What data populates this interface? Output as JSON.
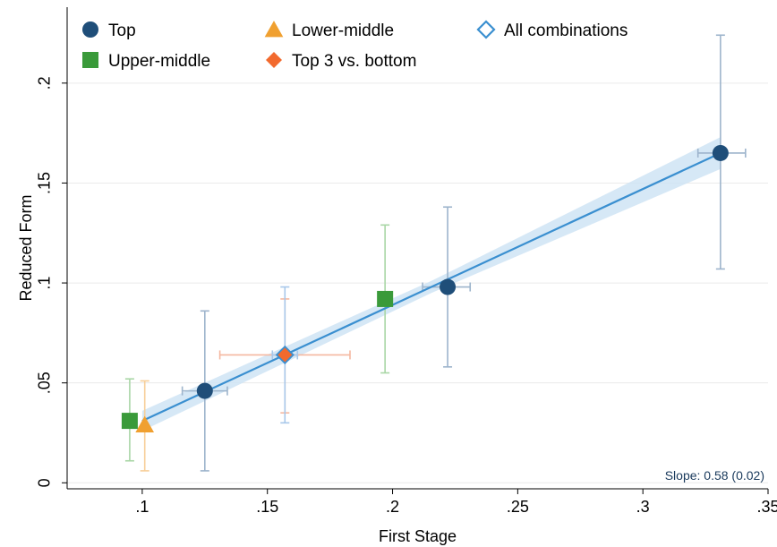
{
  "chart_data": {
    "type": "scatter",
    "xlabel": "First Stage",
    "ylabel": "Reduced Form",
    "xlim": [
      0.07,
      0.35
    ],
    "ylim": [
      -0.003,
      0.238
    ],
    "x_ticks": [
      {
        "value": 0.1,
        "label": ".1"
      },
      {
        "value": 0.15,
        "label": ".15"
      },
      {
        "value": 0.2,
        "label": ".2"
      },
      {
        "value": 0.25,
        "label": ".25"
      },
      {
        "value": 0.3,
        "label": ".3"
      },
      {
        "value": 0.35,
        "label": ".35"
      }
    ],
    "y_ticks": [
      {
        "value": 0,
        "label": "0"
      },
      {
        "value": 0.05,
        "label": ".05"
      },
      {
        "value": 0.1,
        "label": ".1"
      },
      {
        "value": 0.15,
        "label": ".15"
      },
      {
        "value": 0.2,
        "label": ".2"
      }
    ],
    "grid": true,
    "legend_position": "top",
    "series": [
      {
        "name": "Top",
        "marker": "circle",
        "color": "#1f4e79",
        "bar_color": "#9db4cc",
        "points": [
          {
            "x": 0.125,
            "y": 0.046,
            "ylo": 0.006,
            "yhi": 0.086,
            "xlo": 0.116,
            "xhi": 0.134
          },
          {
            "x": 0.222,
            "y": 0.098,
            "ylo": 0.058,
            "yhi": 0.138,
            "xlo": 0.212,
            "xhi": 0.231
          },
          {
            "x": 0.331,
            "y": 0.165,
            "ylo": 0.107,
            "yhi": 0.224,
            "xlo": 0.322,
            "xhi": 0.341
          }
        ]
      },
      {
        "name": "Upper-middle",
        "marker": "square",
        "color": "#3a9a3a",
        "bar_color": "#a9d6a6",
        "points": [
          {
            "x": 0.095,
            "y": 0.031,
            "ylo": 0.011,
            "yhi": 0.052,
            "xlo": 0.095,
            "xhi": 0.095
          },
          {
            "x": 0.197,
            "y": 0.092,
            "ylo": 0.055,
            "yhi": 0.129,
            "xlo": 0.197,
            "xhi": 0.197
          }
        ]
      },
      {
        "name": "Lower-middle",
        "marker": "triangle",
        "color": "#f0a030",
        "bar_color": "#f7cf9a",
        "points": [
          {
            "x": 0.101,
            "y": 0.029,
            "ylo": 0.006,
            "yhi": 0.051,
            "xlo": 0.101,
            "xhi": 0.101
          }
        ]
      },
      {
        "name": "Top 3 vs. bottom",
        "marker": "diamond",
        "color": "#f26a2e",
        "bar_color": "#f5b8a0",
        "points": [
          {
            "x": 0.157,
            "y": 0.064,
            "ylo": 0.035,
            "yhi": 0.092,
            "xlo": 0.131,
            "xhi": 0.183
          }
        ]
      },
      {
        "name": "All combinations",
        "marker": "diamond-hollow",
        "color": "#3a8fd0",
        "bar_color": "#a8c8ea",
        "points": [
          {
            "x": 0.157,
            "y": 0.064,
            "ylo": 0.03,
            "yhi": 0.098,
            "xlo": 0.152,
            "xhi": 0.162
          }
        ]
      }
    ],
    "fit_line": {
      "x": [
        0.1,
        0.331
      ],
      "y": [
        0.031,
        0.165
      ],
      "ci_halfwidth_at_ends": [
        0.005,
        0.008
      ],
      "ci_halfwidth_mid": 0.003,
      "color": "#3a8fd0",
      "band_color": "#cfe4f5"
    },
    "annotation": "Slope: 0.58 (0.02)"
  }
}
